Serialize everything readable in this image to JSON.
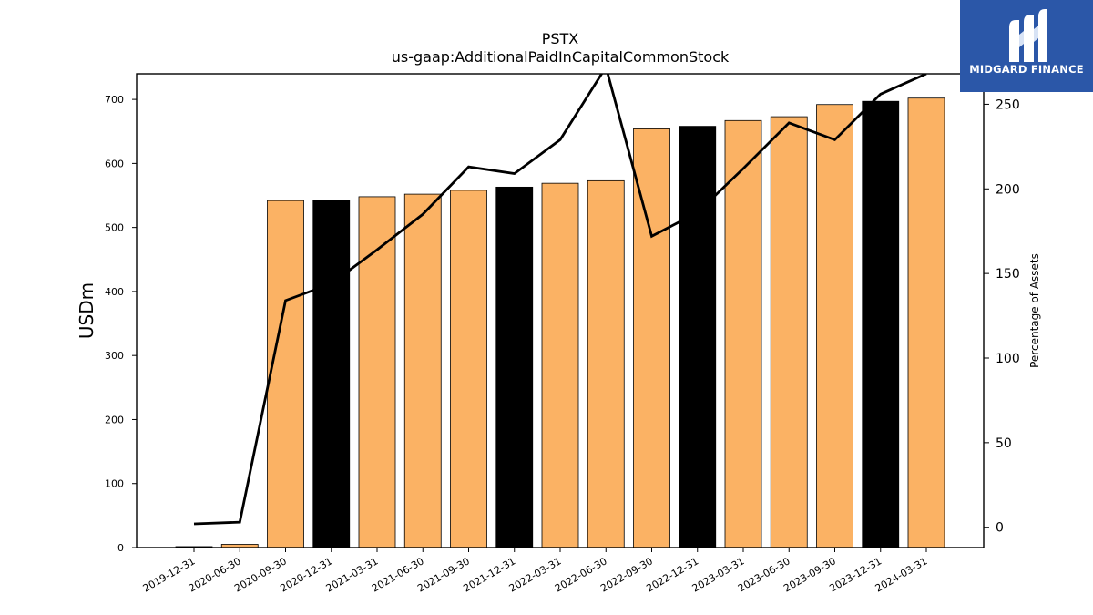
{
  "chart_data": {
    "type": "bar",
    "title": "PSTX",
    "subtitle": "us-gaap:AdditionalPaidInCapitalCommonStock",
    "ylabel": "USDm",
    "y2label": "Percentage of Assets",
    "ylim": [
      0,
      740
    ],
    "y2lim": [
      -12,
      268
    ],
    "yticks": [
      0,
      100,
      200,
      300,
      400,
      500,
      600,
      700
    ],
    "y2ticks": [
      0,
      50,
      100,
      150,
      200,
      250
    ],
    "categories": [
      "2019-12-31",
      "2020-06-30",
      "2020-09-30",
      "2020-12-31",
      "2021-03-31",
      "2021-06-30",
      "2021-09-30",
      "2021-12-31",
      "2022-03-31",
      "2022-06-30",
      "2022-09-30",
      "2022-12-31",
      "2023-03-31",
      "2023-06-30",
      "2023-09-30",
      "2023-12-31",
      "2024-03-31"
    ],
    "series": [
      {
        "kind": "bar",
        "values": [
          1.5,
          5,
          542,
          543,
          548,
          552,
          558,
          563,
          569,
          573,
          654,
          658,
          667,
          673,
          692,
          697,
          702
        ],
        "colors": [
          "#000000",
          "#fbb264",
          "#fbb264",
          "#000000",
          "#fbb264",
          "#fbb264",
          "#fbb264",
          "#000000",
          "#fbb264",
          "#fbb264",
          "#fbb264",
          "#000000",
          "#fbb264",
          "#fbb264",
          "#fbb264",
          "#000000",
          "#fbb264"
        ]
      },
      {
        "kind": "line",
        "axis": "right",
        "color": "#000000",
        "values": [
          2,
          3,
          134,
          144,
          164,
          185,
          213,
          209,
          229,
          272,
          172,
          186,
          212,
          239,
          229,
          256,
          268
        ]
      }
    ],
    "grid": false,
    "legend": "none"
  },
  "logo": {
    "text": "MIDGARD FINANCE",
    "color": "#2b57a8"
  }
}
